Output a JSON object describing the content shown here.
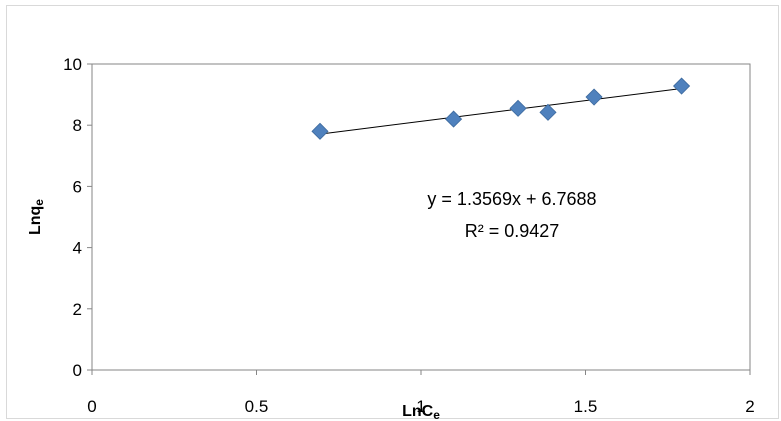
{
  "chart_data": {
    "type": "scatter",
    "title": "",
    "xlabel": "LnC",
    "xlabel_sub": "e",
    "ylabel": "Lnq",
    "ylabel_sub": "e",
    "xlim": [
      0,
      2
    ],
    "ylim": [
      0,
      10
    ],
    "x_ticks": [
      0,
      0.5,
      1,
      1.5,
      2
    ],
    "x_tick_labels": [
      "0",
      "0.5",
      "1",
      "1.5",
      "2"
    ],
    "y_ticks": [
      0,
      2,
      4,
      6,
      8,
      10
    ],
    "y_tick_labels": [
      "0",
      "2",
      "4",
      "6",
      "8",
      "10"
    ],
    "grid": false,
    "legend": "none",
    "series": [
      {
        "x": [
          0.693,
          1.099,
          1.295,
          1.386,
          1.526,
          1.792
        ],
        "y": [
          7.8,
          8.2,
          8.55,
          8.42,
          8.92,
          9.28
        ],
        "marker": "diamond",
        "color": "#4f81bd"
      }
    ],
    "trendline": {
      "slope": 1.3569,
      "intercept": 6.7688,
      "x_range": [
        0.693,
        1.792
      ],
      "color": "#000000",
      "equation": "y = 1.3569x + 6.7688",
      "r_squared": "R² = 0.9427"
    }
  }
}
